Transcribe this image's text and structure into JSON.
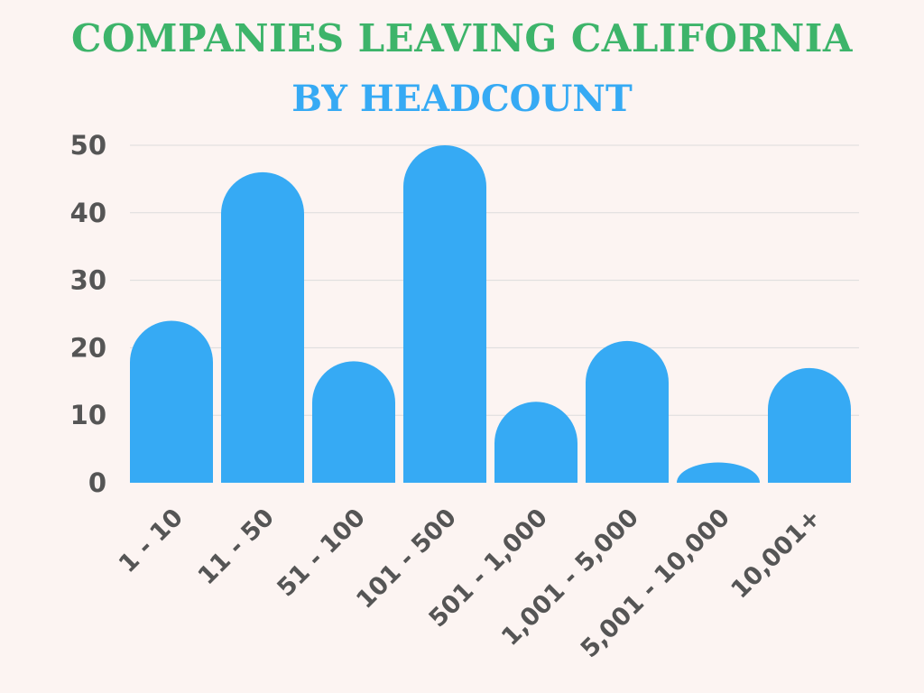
{
  "chart_data": {
    "type": "bar",
    "title": "COMPANIES LEAVING CALIFORNIA",
    "subtitle": "BY HEADCOUNT",
    "categories": [
      "1 - 10",
      "11 - 50",
      "51 - 100",
      "101 - 500",
      "501 - 1,000",
      "1,001 - 5,000",
      "5,001 - 10,000",
      "10,001+"
    ],
    "values": [
      24,
      46,
      18,
      50,
      12,
      21,
      3,
      17
    ],
    "ylim": [
      0,
      50
    ],
    "yticks": [
      0,
      10,
      20,
      30,
      40,
      50
    ],
    "grid": true,
    "colors": {
      "bar": "#36aaf4",
      "title": "#3db46a",
      "subtitle": "#36aaf4",
      "text": "#555555",
      "grid": "#dcdcdc"
    }
  }
}
